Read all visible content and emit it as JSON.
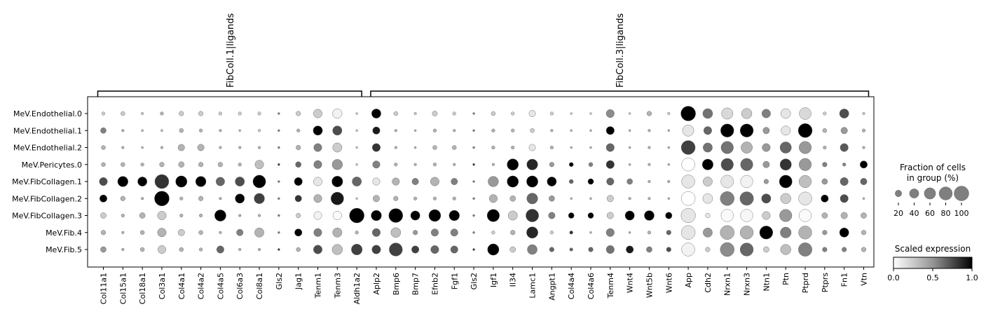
{
  "chart_data": {
    "type": "dotplot",
    "rows": [
      "MeV.Endothelial.0",
      "MeV.Endothelial.1",
      "MeV.Endothelial.2",
      "MeV.Pericytes.0",
      "MeV.FibCollagen.1",
      "MeV.FibCollagen.2",
      "MeV.FibCollagen.3",
      "MeV.Fib.4",
      "MeV.Fib.5"
    ],
    "genes": [
      "Col11a1",
      "Col15a1",
      "Col18a1",
      "Col3a1",
      "Col4a1",
      "Col4a2",
      "Col4a5",
      "Col6a3",
      "Col8a1",
      "Gls2",
      "Jag1",
      "Tenm1",
      "Tenm3",
      "Aldh1a2",
      "Aplp2",
      "Bmp6",
      "Bmp7",
      "Efnb2",
      "Fgf1",
      "Gls2",
      "Igf1",
      "Il34",
      "Lamc1",
      "Angpt1",
      "Col4a4",
      "Col4a6",
      "Tenm4",
      "Wnt4",
      "Wnt5b",
      "Wnt6",
      "App",
      "Cdh2",
      "Nrxn1",
      "Nrxn3",
      "Ntn1",
      "Ptn",
      "Ptprd",
      "Ptprs",
      "Fn1",
      "Vtn"
    ],
    "groups": [
      {
        "label": "FibColl.1|ligands",
        "start": 0,
        "end": 13
      },
      {
        "label": "FibColl.3|ligands",
        "start": 14,
        "end": 39
      }
    ],
    "fraction": [
      [
        5,
        8,
        3,
        5,
        10,
        10,
        5,
        5,
        5,
        2,
        10,
        35,
        42,
        2,
        40,
        8,
        3,
        12,
        5,
        2,
        8,
        5,
        20,
        5,
        2,
        2,
        30,
        2,
        10,
        3,
        100,
        45,
        60,
        50,
        35,
        45,
        65,
        5,
        40,
        3
      ],
      [
        15,
        3,
        2,
        2,
        8,
        5,
        3,
        2,
        3,
        2,
        5,
        40,
        40,
        2,
        25,
        3,
        2,
        5,
        3,
        2,
        5,
        5,
        8,
        3,
        2,
        2,
        30,
        2,
        3,
        2,
        60,
        30,
        80,
        80,
        20,
        40,
        90,
        8,
        20,
        5
      ],
      [
        8,
        3,
        2,
        3,
        20,
        20,
        3,
        3,
        3,
        2,
        10,
        30,
        40,
        2,
        30,
        3,
        2,
        8,
        8,
        2,
        5,
        5,
        20,
        5,
        2,
        2,
        30,
        2,
        3,
        2,
        90,
        40,
        70,
        60,
        30,
        60,
        70,
        5,
        30,
        3
      ],
      [
        8,
        8,
        5,
        10,
        15,
        10,
        10,
        5,
        35,
        2,
        15,
        30,
        50,
        2,
        25,
        5,
        3,
        5,
        3,
        2,
        3,
        60,
        55,
        10,
        8,
        8,
        30,
        2,
        3,
        2,
        80,
        55,
        70,
        70,
        20,
        60,
        70,
        10,
        5,
        25
      ],
      [
        30,
        50,
        40,
        90,
        60,
        50,
        35,
        40,
        75,
        2,
        30,
        35,
        55,
        40,
        25,
        25,
        20,
        35,
        20,
        2,
        50,
        60,
        60,
        40,
        8,
        15,
        25,
        15,
        3,
        3,
        80,
        40,
        75,
        70,
        10,
        75,
        70,
        15,
        30,
        20
      ],
      [
        25,
        10,
        3,
        100,
        5,
        10,
        3,
        40,
        50,
        2,
        20,
        30,
        75,
        2,
        20,
        10,
        5,
        5,
        5,
        2,
        30,
        15,
        55,
        15,
        2,
        2,
        20,
        3,
        3,
        2,
        90,
        45,
        90,
        85,
        40,
        50,
        80,
        25,
        30,
        2
      ],
      [
        15,
        5,
        15,
        35,
        5,
        5,
        60,
        3,
        3,
        2,
        10,
        30,
        35,
        100,
        50,
        90,
        40,
        65,
        50,
        2,
        70,
        40,
        75,
        20,
        15,
        15,
        20,
        40,
        45,
        20,
        95,
        10,
        70,
        70,
        30,
        70,
        70,
        15,
        20,
        15
      ],
      [
        10,
        3,
        8,
        35,
        20,
        8,
        3,
        20,
        40,
        2,
        25,
        30,
        40,
        5,
        30,
        45,
        10,
        25,
        25,
        2,
        5,
        10,
        60,
        5,
        5,
        2,
        30,
        2,
        5,
        10,
        90,
        40,
        90,
        80,
        80,
        55,
        80,
        10,
        40,
        10
      ],
      [
        15,
        3,
        8,
        30,
        8,
        5,
        25,
        3,
        3,
        2,
        8,
        35,
        50,
        55,
        35,
        80,
        25,
        30,
        25,
        2,
        60,
        15,
        45,
        10,
        5,
        10,
        30,
        25,
        15,
        10,
        80,
        10,
        90,
        80,
        15,
        50,
        85,
        10,
        10,
        10
      ]
    ],
    "expression": [
      [
        0.2,
        0.2,
        0.2,
        0.3,
        0.2,
        0.2,
        0.2,
        0.2,
        0.2,
        0.5,
        0.2,
        0.2,
        0.05,
        0.2,
        1.0,
        0.2,
        0.2,
        0.2,
        0.2,
        0.5,
        0.2,
        0.2,
        0.1,
        0.2,
        0.2,
        0.2,
        0.45,
        0.2,
        0.3,
        0.2,
        1.0,
        0.55,
        0.15,
        0.2,
        0.5,
        0.1,
        0.15,
        0.2,
        0.7,
        0.2
      ],
      [
        0.5,
        0.3,
        0.3,
        0.3,
        0.3,
        0.3,
        0.3,
        0.3,
        0.2,
        0.5,
        0.3,
        1.0,
        0.7,
        0.2,
        0.9,
        0.3,
        0.3,
        0.3,
        0.3,
        0.5,
        0.3,
        0.3,
        0.2,
        0.3,
        0.3,
        0.3,
        1.0,
        0.3,
        0.3,
        0.3,
        0.1,
        0.6,
        1.0,
        1.0,
        0.4,
        0.1,
        1.0,
        0.3,
        0.4,
        0.3
      ],
      [
        0.3,
        0.3,
        0.3,
        0.3,
        0.3,
        0.3,
        0.3,
        0.3,
        0.3,
        0.5,
        0.3,
        0.5,
        0.2,
        0.2,
        0.8,
        0.3,
        0.3,
        0.3,
        0.3,
        0.5,
        0.3,
        0.3,
        0.1,
        0.3,
        0.3,
        0.3,
        0.6,
        0.3,
        0.3,
        0.3,
        0.75,
        0.55,
        0.55,
        0.3,
        0.4,
        0.6,
        0.4,
        0.3,
        0.65,
        0.3
      ],
      [
        0.3,
        0.3,
        0.3,
        0.3,
        0.3,
        0.3,
        0.3,
        0.3,
        0.25,
        0.8,
        0.6,
        0.5,
        0.4,
        0.2,
        0.5,
        0.3,
        0.3,
        0.3,
        0.3,
        0.8,
        0.3,
        1.0,
        0.85,
        0.4,
        1.0,
        0.5,
        0.8,
        0.3,
        0.3,
        0.3,
        0.0,
        1.0,
        0.7,
        0.6,
        0.4,
        0.8,
        0.4,
        0.5,
        0.5,
        1.0
      ],
      [
        0.7,
        1.0,
        1.0,
        0.8,
        1.0,
        1.0,
        0.6,
        0.7,
        1.0,
        0.5,
        1.0,
        0.1,
        1.0,
        0.6,
        0.1,
        0.3,
        0.5,
        0.3,
        0.5,
        0.5,
        0.4,
        1.0,
        1.0,
        1.0,
        0.6,
        1.0,
        0.6,
        0.5,
        0.3,
        0.3,
        0.1,
        0.2,
        0.1,
        0.05,
        0.4,
        1.0,
        0.25,
        0.4,
        0.6,
        0.6
      ],
      [
        1.0,
        0.3,
        0.3,
        1.0,
        0.3,
        0.3,
        0.3,
        1.0,
        0.75,
        0.5,
        0.8,
        0.3,
        0.9,
        0.2,
        0.3,
        0.3,
        0.3,
        0.3,
        0.3,
        0.5,
        0.3,
        0.3,
        0.6,
        0.4,
        0.3,
        0.3,
        0.2,
        0.3,
        0.3,
        0.3,
        0.0,
        0.1,
        0.5,
        0.6,
        0.7,
        0.2,
        0.1,
        1.0,
        0.7,
        0.3
      ],
      [
        0.2,
        0.3,
        0.3,
        0.2,
        0.3,
        0.3,
        1.0,
        0.3,
        0.3,
        0.5,
        0.2,
        0.05,
        0.02,
        1.0,
        1.0,
        1.0,
        1.0,
        1.0,
        1.0,
        0.5,
        1.0,
        0.2,
        0.8,
        0.5,
        1.0,
        1.0,
        0.2,
        1.0,
        1.0,
        1.0,
        0.1,
        0.1,
        0.02,
        0.03,
        0.2,
        0.4,
        0.02,
        0.3,
        0.3,
        0.3
      ],
      [
        0.3,
        0.3,
        0.3,
        0.3,
        0.2,
        0.3,
        0.3,
        0.5,
        0.3,
        0.5,
        1.0,
        0.5,
        0.3,
        0.3,
        0.6,
        0.25,
        0.4,
        0.5,
        0.5,
        0.5,
        0.2,
        0.3,
        0.85,
        0.2,
        0.8,
        0.3,
        0.5,
        0.3,
        0.3,
        0.6,
        0.1,
        0.4,
        0.3,
        0.3,
        1.0,
        0.5,
        0.3,
        0.4,
        1.0,
        0.3
      ],
      [
        0.4,
        0.3,
        0.3,
        0.2,
        0.3,
        0.3,
        0.6,
        0.3,
        0.3,
        0.8,
        0.3,
        0.7,
        0.25,
        0.75,
        0.75,
        0.75,
        0.75,
        0.6,
        0.6,
        0.8,
        1.0,
        0.2,
        0.5,
        0.6,
        0.6,
        0.6,
        0.55,
        0.9,
        0.5,
        0.7,
        0.05,
        0.2,
        0.45,
        0.6,
        0.2,
        0.25,
        0.5,
        0.5,
        0.5,
        0.3
      ]
    ],
    "size_legend": {
      "title": "Fraction of cells\nin group (%)",
      "values": [
        20,
        40,
        60,
        80,
        100
      ]
    },
    "color_legend": {
      "title": "Scaled expression",
      "ticks": [
        "0.0",
        "0.5",
        "1.0"
      ],
      "range": [
        0,
        1
      ],
      "colormap": "Greys"
    }
  }
}
